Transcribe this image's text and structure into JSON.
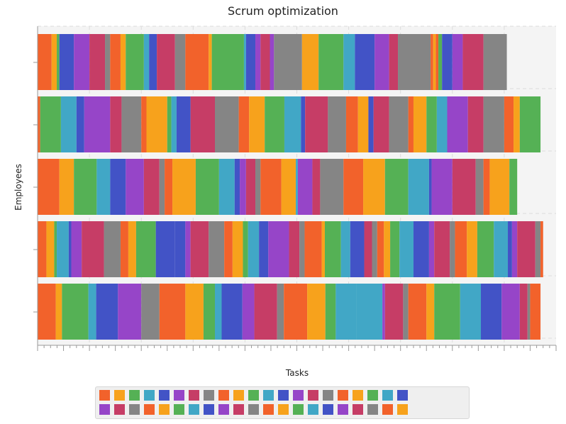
{
  "chart_data": {
    "type": "bar",
    "orientation": "horizontal-stacked",
    "title": "Scrum optimization",
    "xlabel": "Tasks",
    "ylabel": "Employees",
    "grid": true,
    "legend_placement": "bottom",
    "palette": [
      "#f2622b",
      "#f7a21c",
      "#55b155",
      "#41a7c6",
      "#4253c6",
      "#9645c8",
      "#c63d66",
      "#858585"
    ],
    "rows": [
      {
        "segments": [
          [
            0,
            2.7,
            0
          ],
          [
            2.7,
            3.7,
            1
          ],
          [
            3.7,
            4.2,
            2
          ],
          [
            4.2,
            7.0,
            4
          ],
          [
            7.0,
            10.0,
            5
          ],
          [
            10.0,
            13.0,
            6
          ],
          [
            13.0,
            14.0,
            7
          ],
          [
            14.0,
            16.0,
            0
          ],
          [
            16.0,
            17.0,
            1
          ],
          [
            17.0,
            20.5,
            2
          ],
          [
            20.5,
            21.5,
            3
          ],
          [
            21.5,
            23.0,
            4
          ],
          [
            23.0,
            26.5,
            6
          ],
          [
            26.5,
            28.5,
            7
          ],
          [
            28.5,
            33.0,
            0
          ],
          [
            33.0,
            33.6,
            1
          ],
          [
            33.6,
            39.8,
            2
          ],
          [
            39.8,
            40.2,
            3
          ],
          [
            40.2,
            42.0,
            4
          ],
          [
            42.0,
            43.0,
            5
          ],
          [
            43.0,
            44.8,
            6
          ],
          [
            44.8,
            45.6,
            5
          ],
          [
            45.6,
            51.0,
            7
          ],
          [
            51.0,
            54.2,
            1
          ],
          [
            54.2,
            59.0,
            2
          ],
          [
            59.0,
            61.2,
            3
          ],
          [
            61.2,
            65.0,
            4
          ],
          [
            65.0,
            67.8,
            5
          ],
          [
            67.8,
            69.5,
            6
          ],
          [
            69.5,
            75.8,
            7
          ],
          [
            75.8,
            76.3,
            0
          ],
          [
            76.3,
            76.8,
            1
          ],
          [
            76.8,
            77.3,
            0
          ],
          [
            77.3,
            78.0,
            2
          ],
          [
            78.0,
            80.0,
            4
          ],
          [
            80.0,
            82.0,
            5
          ],
          [
            82.0,
            86.0,
            6
          ],
          [
            86.0,
            90.5,
            7
          ]
        ]
      },
      {
        "segments": [
          [
            0,
            0.5,
            0
          ],
          [
            0.5,
            4.5,
            2
          ],
          [
            4.5,
            7.5,
            3
          ],
          [
            7.5,
            9.0,
            4
          ],
          [
            9.0,
            14.0,
            5
          ],
          [
            14.0,
            16.2,
            6
          ],
          [
            16.2,
            20.0,
            7
          ],
          [
            20.0,
            21.0,
            0
          ],
          [
            21.0,
            25.0,
            1
          ],
          [
            25.0,
            25.8,
            2
          ],
          [
            25.8,
            26.8,
            3
          ],
          [
            26.8,
            29.5,
            4
          ],
          [
            29.5,
            34.2,
            6
          ],
          [
            34.2,
            38.8,
            7
          ],
          [
            38.8,
            40.8,
            0
          ],
          [
            40.8,
            43.8,
            1
          ],
          [
            43.8,
            47.6,
            2
          ],
          [
            47.6,
            50.8,
            3
          ],
          [
            50.8,
            51.6,
            4
          ],
          [
            51.6,
            56.0,
            6
          ],
          [
            56.0,
            59.5,
            7
          ],
          [
            59.5,
            61.8,
            0
          ],
          [
            61.8,
            63.8,
            1
          ],
          [
            63.8,
            64.8,
            4
          ],
          [
            64.8,
            67.8,
            6
          ],
          [
            67.8,
            71.5,
            7
          ],
          [
            71.5,
            72.5,
            0
          ],
          [
            72.5,
            75.0,
            1
          ],
          [
            75.0,
            77.0,
            2
          ],
          [
            77.0,
            79.0,
            3
          ],
          [
            79.0,
            83.0,
            5
          ],
          [
            83.0,
            86.0,
            6
          ],
          [
            86.0,
            90.0,
            7
          ],
          [
            90.0,
            91.8,
            0
          ],
          [
            91.8,
            93.0,
            1
          ],
          [
            93.0,
            97.0,
            2
          ]
        ]
      },
      {
        "segments": [
          [
            0,
            4.2,
            0
          ],
          [
            4.2,
            7.0,
            1
          ],
          [
            7.0,
            11.4,
            2
          ],
          [
            11.4,
            14.0,
            3
          ],
          [
            14.0,
            17.0,
            4
          ],
          [
            17.0,
            20.5,
            5
          ],
          [
            20.5,
            23.5,
            6
          ],
          [
            23.5,
            24.5,
            7
          ],
          [
            24.5,
            26.0,
            0
          ],
          [
            26.0,
            30.5,
            1
          ],
          [
            30.5,
            35.0,
            2
          ],
          [
            35.0,
            38.0,
            3
          ],
          [
            38.0,
            39.0,
            4
          ],
          [
            39.0,
            40.2,
            5
          ],
          [
            40.2,
            42.0,
            6
          ],
          [
            42.0,
            43.0,
            7
          ],
          [
            43.0,
            47.0,
            0
          ],
          [
            47.0,
            49.8,
            1
          ],
          [
            49.8,
            50.2,
            3
          ],
          [
            50.2,
            53.0,
            5
          ],
          [
            53.0,
            54.5,
            6
          ],
          [
            54.5,
            59.0,
            7
          ],
          [
            59.0,
            62.8,
            0
          ],
          [
            62.8,
            67.0,
            1
          ],
          [
            67.0,
            71.5,
            2
          ],
          [
            71.5,
            75.5,
            3
          ],
          [
            75.5,
            76.0,
            4
          ],
          [
            76.0,
            80.0,
            5
          ],
          [
            80.0,
            84.5,
            6
          ],
          [
            84.5,
            86.0,
            7
          ],
          [
            86.0,
            87.2,
            0
          ],
          [
            87.2,
            91.0,
            1
          ],
          [
            91.0,
            92.5,
            2
          ]
        ]
      },
      {
        "segments": [
          [
            0,
            1.7,
            0
          ],
          [
            1.7,
            3.2,
            1
          ],
          [
            3.2,
            3.7,
            2
          ],
          [
            3.7,
            6.0,
            3
          ],
          [
            6.0,
            6.5,
            4
          ],
          [
            6.5,
            8.5,
            5
          ],
          [
            8.5,
            12.8,
            6
          ],
          [
            12.8,
            16.0,
            7
          ],
          [
            16.0,
            17.5,
            0
          ],
          [
            17.5,
            19.0,
            1
          ],
          [
            19.0,
            22.8,
            2
          ],
          [
            22.8,
            26.5,
            4
          ],
          [
            26.5,
            28.5,
            4
          ],
          [
            28.5,
            29.5,
            5
          ],
          [
            29.5,
            33.0,
            6
          ],
          [
            33.0,
            36.0,
            7
          ],
          [
            36.0,
            37.6,
            0
          ],
          [
            37.6,
            39.6,
            1
          ],
          [
            39.6,
            40.6,
            2
          ],
          [
            40.6,
            42.7,
            3
          ],
          [
            42.7,
            44.5,
            4
          ],
          [
            44.5,
            48.5,
            5
          ],
          [
            48.5,
            50.5,
            6
          ],
          [
            50.5,
            51.5,
            7
          ],
          [
            51.5,
            54.8,
            0
          ],
          [
            54.8,
            55.4,
            1
          ],
          [
            55.4,
            58.5,
            2
          ],
          [
            58.5,
            60.3,
            3
          ],
          [
            60.3,
            63.0,
            4
          ],
          [
            63.0,
            64.5,
            6
          ],
          [
            64.5,
            65.5,
            7
          ],
          [
            65.5,
            66.8,
            0
          ],
          [
            66.8,
            68.0,
            1
          ],
          [
            68.0,
            69.8,
            2
          ],
          [
            69.8,
            72.5,
            3
          ],
          [
            72.5,
            75.5,
            4
          ],
          [
            75.5,
            76.5,
            5
          ],
          [
            76.5,
            79.5,
            6
          ],
          [
            79.5,
            80.5,
            7
          ],
          [
            80.5,
            82.8,
            0
          ],
          [
            82.8,
            84.8,
            1
          ],
          [
            84.8,
            88.0,
            2
          ],
          [
            88.0,
            90.7,
            3
          ],
          [
            90.7,
            91.5,
            4
          ],
          [
            91.5,
            92.5,
            5
          ],
          [
            92.5,
            96.0,
            6
          ],
          [
            96.0,
            97.0,
            7
          ],
          [
            97.0,
            97.5,
            0
          ]
        ]
      },
      {
        "segments": [
          [
            0,
            3.5,
            0
          ],
          [
            3.5,
            4.7,
            1
          ],
          [
            4.7,
            9.8,
            2
          ],
          [
            9.8,
            11.3,
            3
          ],
          [
            11.3,
            15.5,
            4
          ],
          [
            15.5,
            20.0,
            5
          ],
          [
            20.0,
            23.5,
            7
          ],
          [
            23.5,
            28.5,
            0
          ],
          [
            28.5,
            32.0,
            1
          ],
          [
            32.0,
            34.2,
            2
          ],
          [
            34.2,
            35.5,
            3
          ],
          [
            35.5,
            39.5,
            4
          ],
          [
            39.5,
            41.8,
            5
          ],
          [
            41.8,
            46.2,
            6
          ],
          [
            46.2,
            47.5,
            7
          ],
          [
            47.5,
            52.0,
            0
          ],
          [
            52.0,
            55.5,
            1
          ],
          [
            55.5,
            57.5,
            2
          ],
          [
            57.5,
            61.5,
            3
          ],
          [
            61.5,
            66.5,
            3
          ],
          [
            66.5,
            67.0,
            5
          ],
          [
            67.0,
            70.5,
            6
          ],
          [
            70.5,
            71.5,
            7
          ],
          [
            71.5,
            75.0,
            0
          ],
          [
            75.0,
            76.5,
            1
          ],
          [
            76.5,
            81.5,
            2
          ],
          [
            81.5,
            85.5,
            3
          ],
          [
            85.5,
            89.5,
            4
          ],
          [
            89.5,
            93.0,
            5
          ],
          [
            93.0,
            94.5,
            6
          ],
          [
            94.5,
            95.0,
            7
          ],
          [
            95.0,
            97.0,
            0
          ]
        ]
      }
    ],
    "legend": {
      "count": 42
    }
  }
}
